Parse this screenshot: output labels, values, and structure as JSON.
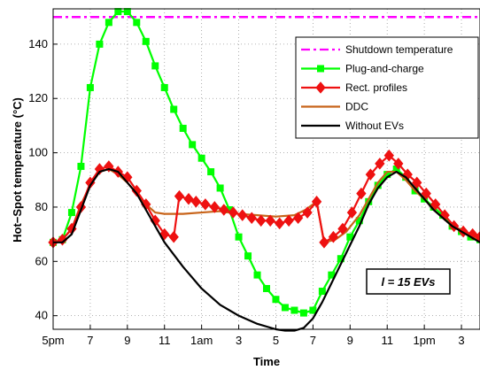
{
  "chart_data": {
    "type": "line",
    "xlabel": "Time",
    "ylabel": "Hot−Spot temperature (°C)",
    "xlim": [
      0,
      23
    ],
    "ylim": [
      35,
      153
    ],
    "x_ticks": [
      {
        "x": 0,
        "label": "5pm"
      },
      {
        "x": 2,
        "label": "7"
      },
      {
        "x": 4,
        "label": "9"
      },
      {
        "x": 6,
        "label": "11"
      },
      {
        "x": 8,
        "label": "1am"
      },
      {
        "x": 10,
        "label": "3"
      },
      {
        "x": 12,
        "label": "5"
      },
      {
        "x": 14,
        "label": "7"
      },
      {
        "x": 16,
        "label": "9"
      },
      {
        "x": 18,
        "label": "11"
      },
      {
        "x": 20,
        "label": "1pm"
      },
      {
        "x": 22,
        "label": "3"
      }
    ],
    "y_ticks": [
      40,
      60,
      80,
      100,
      120,
      140
    ],
    "grid": true,
    "legend_position": "top-right",
    "annotation": "l = 15 EVs",
    "series": [
      {
        "name": "Shutdown temperature",
        "color": "#ff00ff",
        "style": "dashdot",
        "marker": "none",
        "points": [
          [
            0,
            150
          ],
          [
            23,
            150
          ]
        ]
      },
      {
        "name": "Plug-and-charge",
        "color": "#00ff00",
        "style": "solid",
        "marker": "square",
        "points": [
          [
            0,
            67
          ],
          [
            0.5,
            68
          ],
          [
            1,
            78
          ],
          [
            1.5,
            95
          ],
          [
            2,
            124
          ],
          [
            2.5,
            140
          ],
          [
            3,
            148
          ],
          [
            3.5,
            152
          ],
          [
            4,
            152
          ],
          [
            4.5,
            148
          ],
          [
            5,
            141
          ],
          [
            5.5,
            132
          ],
          [
            6,
            124
          ],
          [
            6.5,
            116
          ],
          [
            7,
            109
          ],
          [
            7.5,
            103
          ],
          [
            8,
            98
          ],
          [
            8.5,
            93
          ],
          [
            9,
            87
          ],
          [
            9.5,
            79
          ],
          [
            10,
            69
          ],
          [
            10.5,
            62
          ],
          [
            11,
            55
          ],
          [
            11.5,
            50
          ],
          [
            12,
            46
          ],
          [
            12.5,
            43
          ],
          [
            13,
            42
          ],
          [
            13.5,
            41
          ],
          [
            14,
            42
          ],
          [
            14.5,
            49
          ],
          [
            15,
            55
          ],
          [
            15.5,
            61
          ],
          [
            16,
            69
          ],
          [
            16.5,
            75
          ],
          [
            17,
            82
          ],
          [
            17.5,
            88
          ],
          [
            18,
            92
          ],
          [
            18.5,
            94
          ],
          [
            19,
            91
          ],
          [
            19.5,
            86
          ],
          [
            20,
            83
          ],
          [
            20.5,
            80
          ],
          [
            21,
            77
          ],
          [
            21.5,
            73
          ],
          [
            22,
            71
          ],
          [
            22.5,
            69
          ],
          [
            23,
            68
          ]
        ]
      },
      {
        "name": "Rect. profiles",
        "color": "#ee1111",
        "style": "solid",
        "marker": "diamond",
        "points": [
          [
            0,
            67
          ],
          [
            0.5,
            68
          ],
          [
            1,
            72
          ],
          [
            1.5,
            80
          ],
          [
            2,
            89
          ],
          [
            2.5,
            94
          ],
          [
            3,
            95
          ],
          [
            3.5,
            93
          ],
          [
            4,
            91
          ],
          [
            4.5,
            86
          ],
          [
            5,
            81
          ],
          [
            5.5,
            75
          ],
          [
            6,
            70
          ],
          [
            6.5,
            69
          ],
          [
            6.8,
            84
          ],
          [
            7.3,
            83
          ],
          [
            7.7,
            82
          ],
          [
            8.2,
            81
          ],
          [
            8.7,
            80
          ],
          [
            9.2,
            79
          ],
          [
            9.7,
            78
          ],
          [
            10.2,
            77
          ],
          [
            10.7,
            76
          ],
          [
            11.2,
            75
          ],
          [
            11.7,
            75
          ],
          [
            12.2,
            74
          ],
          [
            12.7,
            75
          ],
          [
            13.2,
            76
          ],
          [
            13.7,
            78
          ],
          [
            14.2,
            82
          ],
          [
            14.6,
            67
          ],
          [
            15.1,
            69
          ],
          [
            15.6,
            72
          ],
          [
            16.1,
            78
          ],
          [
            16.6,
            85
          ],
          [
            17.1,
            92
          ],
          [
            17.6,
            96
          ],
          [
            18.1,
            99
          ],
          [
            18.6,
            96
          ],
          [
            19.1,
            92
          ],
          [
            19.6,
            89
          ],
          [
            20.1,
            85
          ],
          [
            20.6,
            81
          ],
          [
            21.1,
            77
          ],
          [
            21.6,
            73
          ],
          [
            22.1,
            71
          ],
          [
            22.6,
            70
          ],
          [
            23,
            69
          ]
        ]
      },
      {
        "name": "DDC",
        "color": "#c8641a",
        "style": "solid",
        "marker": "none",
        "points": [
          [
            0,
            67
          ],
          [
            0.5,
            68
          ],
          [
            1,
            72
          ],
          [
            1.5,
            81
          ],
          [
            2,
            88
          ],
          [
            2.5,
            93
          ],
          [
            3,
            94
          ],
          [
            3.5,
            92
          ],
          [
            4,
            89
          ],
          [
            4.5,
            85
          ],
          [
            5,
            81
          ],
          [
            5.5,
            78
          ],
          [
            6,
            77.5
          ],
          [
            7,
            77.5
          ],
          [
            8,
            78
          ],
          [
            9,
            78.5
          ],
          [
            10,
            77.5
          ],
          [
            11,
            77
          ],
          [
            12,
            76.5
          ],
          [
            13,
            77
          ],
          [
            13.6,
            79
          ],
          [
            14.2,
            82
          ],
          [
            14.6,
            67
          ],
          [
            15.2,
            68
          ],
          [
            15.8,
            71
          ],
          [
            16.5,
            77
          ],
          [
            17,
            83
          ],
          [
            17.5,
            89
          ],
          [
            18,
            93
          ],
          [
            18.5,
            93
          ],
          [
            19,
            90
          ],
          [
            19.5,
            86
          ],
          [
            20,
            83
          ],
          [
            20.5,
            79
          ],
          [
            21,
            76
          ],
          [
            21.5,
            73
          ],
          [
            22,
            71
          ],
          [
            22.5,
            69
          ],
          [
            23,
            68
          ]
        ]
      },
      {
        "name": "Without EVs",
        "color": "#000000",
        "style": "solid",
        "marker": "none",
        "points": [
          [
            0,
            67
          ],
          [
            0.5,
            67
          ],
          [
            1,
            70
          ],
          [
            1.5,
            79
          ],
          [
            2,
            88
          ],
          [
            2.5,
            93
          ],
          [
            3,
            94
          ],
          [
            3.5,
            93
          ],
          [
            4,
            89
          ],
          [
            4.5,
            85
          ],
          [
            5,
            79
          ],
          [
            5.5,
            73
          ],
          [
            6,
            67
          ],
          [
            7,
            58
          ],
          [
            8,
            50
          ],
          [
            9,
            44
          ],
          [
            10,
            40
          ],
          [
            11,
            37
          ],
          [
            12,
            35
          ],
          [
            12.5,
            34.5
          ],
          [
            13,
            34.5
          ],
          [
            13.5,
            35.5
          ],
          [
            14,
            39
          ],
          [
            14.5,
            45
          ],
          [
            15,
            52
          ],
          [
            15.5,
            59
          ],
          [
            16,
            66
          ],
          [
            16.5,
            73
          ],
          [
            17,
            81
          ],
          [
            17.5,
            87
          ],
          [
            18,
            91
          ],
          [
            18.5,
            93
          ],
          [
            19,
            91
          ],
          [
            19.5,
            87
          ],
          [
            20,
            83
          ],
          [
            20.5,
            79
          ],
          [
            21,
            76
          ],
          [
            21.5,
            73
          ],
          [
            22,
            71
          ],
          [
            22.5,
            69
          ],
          [
            23,
            67
          ]
        ]
      }
    ]
  }
}
